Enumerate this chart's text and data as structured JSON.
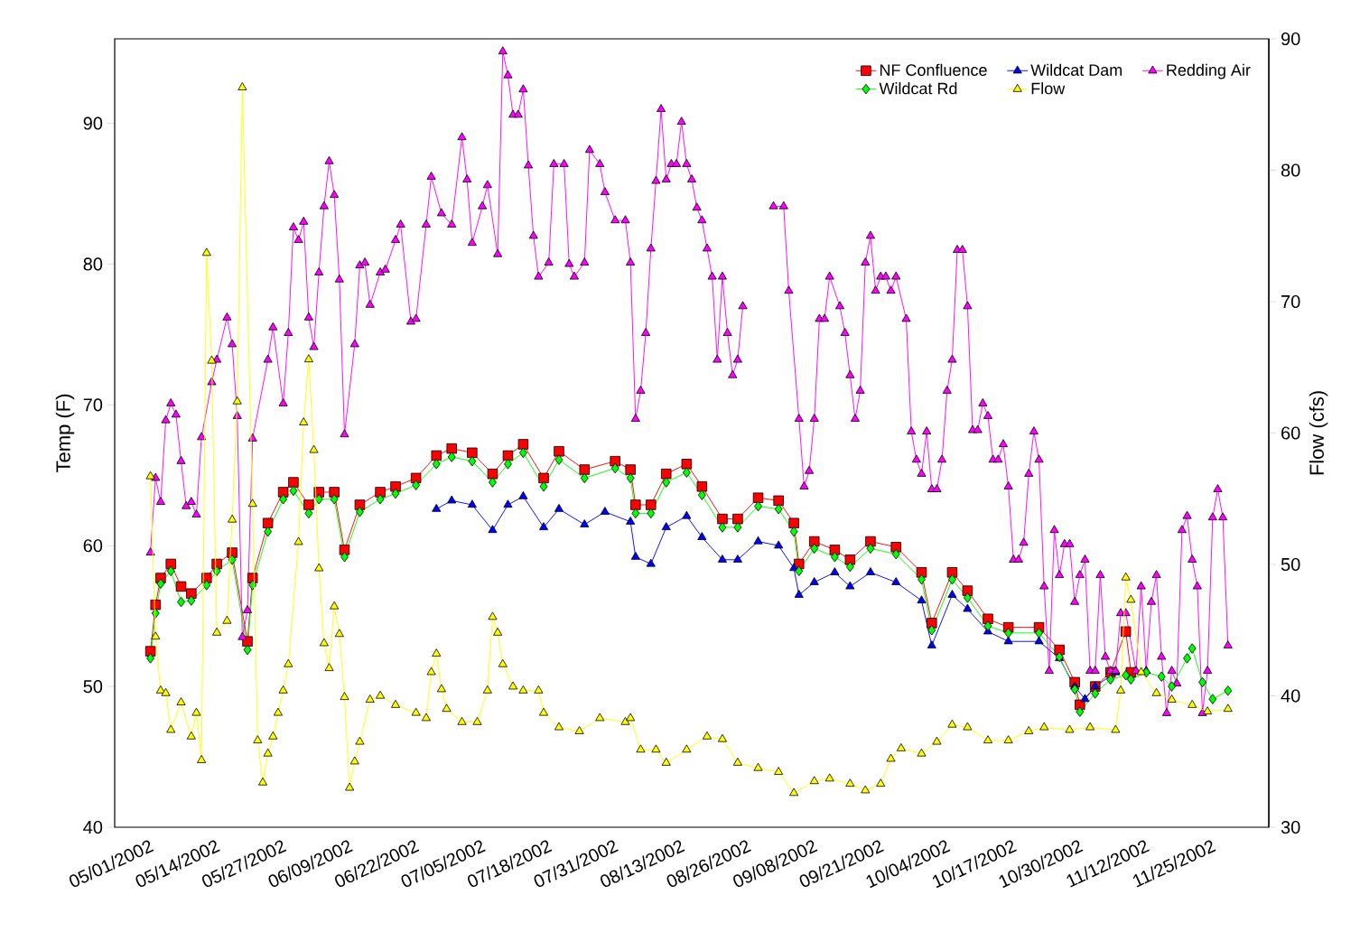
{
  "chart_data": {
    "type": "line",
    "ylabel": "Temp (F)",
    "y2label": "Flow (cfs)",
    "xlim": [
      "2002-04-24",
      "2002-12-06"
    ],
    "ylim": [
      40,
      96
    ],
    "y2lim": [
      30,
      90
    ],
    "yticks": [
      40,
      50,
      60,
      70,
      80,
      90
    ],
    "y2ticks": [
      30,
      40,
      50,
      60,
      70,
      80,
      90
    ],
    "xticks": [
      {
        "value": "2002-05-01",
        "label": "05/01/2002"
      },
      {
        "value": "2002-05-14",
        "label": "05/14/2002"
      },
      {
        "value": "2002-05-27",
        "label": "05/27/2002"
      },
      {
        "value": "2002-06-09",
        "label": "06/09/2002"
      },
      {
        "value": "2002-06-22",
        "label": "06/22/2002"
      },
      {
        "value": "2002-07-05",
        "label": "07/05/2002"
      },
      {
        "value": "2002-07-18",
        "label": "07/18/2002"
      },
      {
        "value": "2002-07-31",
        "label": "07/31/2002"
      },
      {
        "value": "2002-08-13",
        "label": "08/13/2002"
      },
      {
        "value": "2002-08-26",
        "label": "08/26/2002"
      },
      {
        "value": "2002-09-08",
        "label": "09/08/2002"
      },
      {
        "value": "2002-09-21",
        "label": "09/21/2002"
      },
      {
        "value": "2002-10-04",
        "label": "10/04/2002"
      },
      {
        "value": "2002-10-17",
        "label": "10/17/2002"
      },
      {
        "value": "2002-10-30",
        "label": "10/30/2002"
      },
      {
        "value": "2002-11-12",
        "label": "11/12/2002"
      },
      {
        "value": "2002-11-25",
        "label": "11/25/2002"
      }
    ],
    "legend": "top right",
    "series": [
      {
        "name": "NF Confluence",
        "color": "#ff0000",
        "marker": "square",
        "x": [
          "2002-05-01",
          "2002-05-02",
          "2002-05-03",
          "2002-05-05",
          "2002-05-07",
          "2002-05-09",
          "2002-05-12",
          "2002-05-14",
          "2002-05-17",
          "2002-05-20",
          "2002-05-21",
          "2002-05-24",
          "2002-05-27",
          "2002-05-29",
          "2002-06-01",
          "2002-06-03",
          "2002-06-06",
          "2002-06-08",
          "2002-06-11",
          "2002-06-15",
          "2002-06-18",
          "2002-06-22",
          "2002-06-26",
          "2002-06-29",
          "2002-07-03",
          "2002-07-07",
          "2002-07-10",
          "2002-07-13",
          "2002-07-17",
          "2002-07-20",
          "2002-07-25",
          "2002-07-31",
          "2002-08-03",
          "2002-08-04",
          "2002-08-07",
          "2002-08-10",
          "2002-08-14",
          "2002-08-17",
          "2002-08-21",
          "2002-08-24",
          "2002-08-28",
          "2002-09-01",
          "2002-09-04",
          "2002-09-05",
          "2002-09-08",
          "2002-09-12",
          "2002-09-15",
          "2002-09-19",
          "2002-09-24",
          "2002-09-29",
          "2002-10-01",
          "2002-10-05",
          "2002-10-08",
          "2002-10-12",
          "2002-10-16",
          "2002-10-22",
          "2002-10-26",
          "2002-10-29",
          "2002-10-30",
          "2002-11-02",
          "2002-11-05",
          "2002-11-08",
          "2002-11-09"
        ],
        "values": [
          52.5,
          55.8,
          57.7,
          58.7,
          57.1,
          56.6,
          57.7,
          58.7,
          59.5,
          53.2,
          57.7,
          61.6,
          63.8,
          64.5,
          62.9,
          63.8,
          63.8,
          59.7,
          62.9,
          63.8,
          64.2,
          64.8,
          66.4,
          66.9,
          66.6,
          65.1,
          66.4,
          67.2,
          64.8,
          66.7,
          65.4,
          66.0,
          65.4,
          62.9,
          62.9,
          65.1,
          65.8,
          64.2,
          61.9,
          61.9,
          63.4,
          63.2,
          61.6,
          58.7,
          60.3,
          59.7,
          59.0,
          60.3,
          59.9,
          58.1,
          54.5,
          58.1,
          56.8,
          54.8,
          54.2,
          54.2,
          52.6,
          50.3,
          48.7,
          50.0,
          51.0,
          53.9,
          51.0
        ]
      },
      {
        "name": "Wildcat Dam",
        "color": "#0000ff",
        "marker": "triangle",
        "x": [
          "2002-06-26",
          "2002-06-29",
          "2002-07-03",
          "2002-07-07",
          "2002-07-10",
          "2002-07-13",
          "2002-07-17",
          "2002-07-20",
          "2002-07-25",
          "2002-07-29",
          "2002-08-03",
          "2002-08-04",
          "2002-08-07",
          "2002-08-10",
          "2002-08-14",
          "2002-08-17",
          "2002-08-21",
          "2002-08-24",
          "2002-08-28",
          "2002-09-01",
          "2002-09-04",
          "2002-09-05",
          "2002-09-08",
          "2002-09-12",
          "2002-09-15",
          "2002-09-19",
          "2002-09-24",
          "2002-09-29",
          "2002-10-01",
          "2002-10-05",
          "2002-10-08",
          "2002-10-12",
          "2002-10-16",
          "2002-10-22",
          "2002-10-26",
          "2002-10-29",
          "2002-10-31",
          "2002-11-02",
          "2002-11-06"
        ],
        "values": [
          62.6,
          63.2,
          62.9,
          61.1,
          62.9,
          63.5,
          61.3,
          62.6,
          61.5,
          62.4,
          61.7,
          59.2,
          58.7,
          61.3,
          62.1,
          60.6,
          59.0,
          59.0,
          60.3,
          60.0,
          58.4,
          56.5,
          57.4,
          58.1,
          57.1,
          58.1,
          57.4,
          56.1,
          52.9,
          56.5,
          55.5,
          53.9,
          53.2,
          53.2,
          52.0,
          50.0,
          49.1,
          50.0,
          51.0
        ]
      },
      {
        "name": "Redding Air",
        "color": "#ff00ff",
        "marker": "triangle-down",
        "x": [
          "2002-05-01",
          "2002-05-02",
          "2002-05-03",
          "2002-05-04",
          "2002-05-05",
          "2002-05-06",
          "2002-05-07",
          "2002-05-08",
          "2002-05-09",
          "2002-05-10",
          "2002-05-11",
          "2002-05-13",
          "2002-05-14",
          "2002-05-16",
          "2002-05-17",
          "2002-05-18",
          "2002-05-19",
          "2002-05-20",
          "2002-05-21",
          "2002-05-24",
          "2002-05-25",
          "2002-05-27",
          "2002-05-28",
          "2002-05-29",
          "2002-05-30",
          "2002-05-31",
          "2002-06-01",
          "2002-06-02",
          "2002-06-03",
          "2002-06-04",
          "2002-06-05",
          "2002-06-06",
          "2002-06-07",
          "2002-06-08",
          "2002-06-10",
          "2002-06-11",
          "2002-06-12",
          "2002-06-13",
          "2002-06-15",
          "2002-06-16",
          "2002-06-18",
          "2002-06-19",
          "2002-06-21",
          "2002-06-22",
          "2002-06-24",
          "2002-06-25",
          "2002-06-27",
          "2002-06-29",
          "2002-07-01",
          "2002-07-02",
          "2002-07-03",
          "2002-07-05",
          "2002-07-06",
          "2002-07-08",
          "2002-07-09",
          "2002-07-10",
          "2002-07-11",
          "2002-07-12",
          "2002-07-13",
          "2002-07-14",
          "2002-07-15",
          "2002-07-16",
          "2002-07-18",
          "2002-07-19",
          "2002-07-21",
          "2002-07-22",
          "2002-07-23",
          "2002-07-25",
          "2002-07-26",
          "2002-07-28",
          "2002-07-29",
          "2002-07-31",
          "2002-08-02",
          "2002-08-03",
          "2002-08-04",
          "2002-08-05",
          "2002-08-06",
          "2002-08-07",
          "2002-08-08",
          "2002-08-09",
          "2002-08-10",
          "2002-08-11",
          "2002-08-12",
          "2002-08-13",
          "2002-08-14",
          "2002-08-15",
          "2002-08-16",
          "2002-08-17",
          "2002-08-18",
          "2002-08-19",
          "2002-08-20",
          "2002-08-21",
          "2002-08-22",
          "2002-08-23",
          "2002-08-24",
          "2002-08-25",
          "2002-08-28",
          "2002-08-31",
          "2002-09-02",
          "2002-09-03",
          "2002-09-05",
          "2002-09-06",
          "2002-09-07",
          "2002-09-08",
          "2002-09-09",
          "2002-09-10",
          "2002-09-11",
          "2002-09-13",
          "2002-09-14",
          "2002-09-15",
          "2002-09-16",
          "2002-09-17",
          "2002-09-18",
          "2002-09-19",
          "2002-09-20",
          "2002-09-21",
          "2002-09-22",
          "2002-09-23",
          "2002-09-24",
          "2002-09-26",
          "2002-09-27",
          "2002-09-28",
          "2002-09-29",
          "2002-09-30",
          "2002-10-01",
          "2002-10-02",
          "2002-10-03",
          "2002-10-04",
          "2002-10-05",
          "2002-10-06",
          "2002-10-07",
          "2002-10-08",
          "2002-10-09",
          "2002-10-10",
          "2002-10-11",
          "2002-10-12",
          "2002-10-13",
          "2002-10-14",
          "2002-10-15",
          "2002-10-16",
          "2002-10-17",
          "2002-10-18",
          "2002-10-19",
          "2002-10-20",
          "2002-10-21",
          "2002-10-22",
          "2002-10-23",
          "2002-10-24",
          "2002-10-25",
          "2002-10-26",
          "2002-10-27",
          "2002-10-28",
          "2002-10-29",
          "2002-10-30",
          "2002-10-31",
          "2002-11-01",
          "2002-11-02",
          "2002-11-03",
          "2002-11-04",
          "2002-11-05",
          "2002-11-06",
          "2002-11-07",
          "2002-11-08",
          "2002-11-10",
          "2002-11-11",
          "2002-11-12",
          "2002-11-13",
          "2002-11-14",
          "2002-11-15",
          "2002-11-16",
          "2002-11-17",
          "2002-11-18",
          "2002-11-19",
          "2002-11-20",
          "2002-11-21",
          "2002-11-22",
          "2002-11-23",
          "2002-11-24",
          "2002-11-25",
          "2002-11-26",
          "2002-11-27",
          "2002-11-28"
        ],
        "values": [
          59.5,
          64.8,
          63.1,
          68.9,
          70.1,
          69.3,
          66.0,
          62.8,
          63.1,
          62.2,
          67.7,
          71.6,
          73.2,
          76.2,
          74.3,
          69.2,
          53.5,
          55.4,
          67.6,
          73.2,
          75.5,
          70.1,
          75.1,
          82.6,
          81.7,
          83.0,
          76.2,
          74.1,
          79.4,
          84.1,
          87.3,
          84.9,
          78.9,
          67.9,
          74.3,
          79.9,
          80.1,
          77.1,
          79.4,
          79.6,
          81.7,
          82.8,
          75.9,
          76.1,
          82.8,
          86.2,
          83.6,
          82.8,
          89.0,
          86.0,
          81.5,
          84.1,
          85.6,
          80.7,
          95.1,
          93.4,
          90.6,
          90.6,
          92.4,
          87.0,
          82.0,
          79.1,
          80.1,
          87.1,
          87.1,
          80.0,
          79.1,
          80.1,
          88.1,
          87.1,
          85.1,
          83.1,
          83.1,
          80.1,
          69.0,
          71.0,
          75.1,
          81.1,
          85.9,
          91.0,
          86.0,
          87.1,
          87.1,
          90.1,
          87.1,
          86.0,
          84.0,
          83.1,
          81.1,
          79.1,
          73.2,
          79.1,
          75.1,
          72.1,
          73.2,
          77.0,
          null,
          84.1,
          84.1,
          78.1,
          69.0,
          64.2,
          65.3,
          69.0,
          76.1,
          76.1,
          79.1,
          77.0,
          75.1,
          72.1,
          69.0,
          71.0,
          80.1,
          82.0,
          78.1,
          79.1,
          79.1,
          78.1,
          79.1,
          76.1,
          68.1,
          66.1,
          65.1,
          68.1,
          64.0,
          64.0,
          66.1,
          71.0,
          73.2,
          81.0,
          81.0,
          77.0,
          68.2,
          68.2,
          70.1,
          69.2,
          66.1,
          66.1,
          67.2,
          64.2,
          59.0,
          59.0,
          60.2,
          65.1,
          68.1,
          66.1,
          57.1,
          51.1,
          61.1,
          57.9,
          60.1,
          60.1,
          56.0,
          57.9,
          59.0,
          51.1,
          51.1,
          57.9,
          52.1,
          51.1,
          51.1,
          55.2,
          55.2,
          51.1,
          57.1,
          51.1,
          56.0,
          57.9,
          52.1,
          48.1,
          51.1,
          50.2,
          61.1,
          62.1,
          59.0,
          57.1,
          48.1,
          51.1,
          62.0,
          64.0,
          62.0,
          52.9
        ]
      },
      {
        "name": "Wildcat Rd",
        "color": "#00ff00",
        "marker": "diamond",
        "x": [
          "2002-05-01",
          "2002-05-02",
          "2002-05-03",
          "2002-05-05",
          "2002-05-07",
          "2002-05-09",
          "2002-05-12",
          "2002-05-14",
          "2002-05-17",
          "2002-05-20",
          "2002-05-21",
          "2002-05-24",
          "2002-05-27",
          "2002-05-29",
          "2002-06-01",
          "2002-06-03",
          "2002-06-06",
          "2002-06-08",
          "2002-06-11",
          "2002-06-15",
          "2002-06-18",
          "2002-06-22",
          "2002-06-26",
          "2002-06-29",
          "2002-07-03",
          "2002-07-07",
          "2002-07-10",
          "2002-07-13",
          "2002-07-17",
          "2002-07-20",
          "2002-07-25",
          "2002-07-31",
          "2002-08-03",
          "2002-08-04",
          "2002-08-07",
          "2002-08-10",
          "2002-08-14",
          "2002-08-17",
          "2002-08-21",
          "2002-08-24",
          "2002-08-28",
          "2002-09-01",
          "2002-09-04",
          "2002-09-05",
          "2002-09-08",
          "2002-09-12",
          "2002-09-15",
          "2002-09-19",
          "2002-09-24",
          "2002-09-29",
          "2002-10-01",
          "2002-10-05",
          "2002-10-08",
          "2002-10-12",
          "2002-10-16",
          "2002-10-22",
          "2002-10-26",
          "2002-10-29",
          "2002-10-30",
          "2002-11-02",
          "2002-11-05",
          "2002-11-08",
          "2002-11-09",
          "2002-11-12",
          "2002-11-15",
          "2002-11-17",
          "2002-11-20",
          "2002-11-21",
          "2002-11-23",
          "2002-11-25",
          "2002-11-28"
        ],
        "values": [
          52.0,
          55.2,
          57.3,
          58.2,
          56.0,
          56.1,
          57.2,
          58.2,
          59.0,
          52.6,
          57.2,
          61.0,
          63.3,
          63.9,
          62.3,
          63.3,
          63.3,
          59.2,
          62.4,
          63.3,
          63.7,
          64.3,
          65.8,
          66.3,
          66.0,
          64.5,
          65.8,
          66.6,
          64.2,
          66.1,
          64.8,
          65.5,
          64.8,
          62.3,
          62.3,
          64.5,
          65.2,
          63.6,
          61.3,
          61.3,
          62.8,
          62.6,
          61.0,
          58.2,
          59.8,
          59.2,
          58.5,
          59.8,
          59.4,
          57.6,
          54.0,
          57.6,
          56.3,
          54.3,
          53.8,
          53.8,
          52.1,
          49.8,
          48.2,
          49.5,
          50.5,
          50.8,
          50.5,
          51.0,
          50.7,
          50.0,
          52.0,
          52.7,
          50.3,
          49.1,
          49.7
        ]
      },
      {
        "name": "Flow",
        "color": "#ffff00",
        "marker": "triangle",
        "axis": "y2",
        "x": [
          "2002-05-01",
          "2002-05-02",
          "2002-05-03",
          "2002-05-04",
          "2002-05-05",
          "2002-05-07",
          "2002-05-09",
          "2002-05-10",
          "2002-05-11",
          "2002-05-12",
          "2002-05-13",
          "2002-05-14",
          "2002-05-16",
          "2002-05-17",
          "2002-05-18",
          "2002-05-19",
          "2002-05-21",
          "2002-05-22",
          "2002-05-23",
          "2002-05-24",
          "2002-05-25",
          "2002-05-26",
          "2002-05-27",
          "2002-05-28",
          "2002-05-30",
          "2002-05-31",
          "2002-06-01",
          "2002-06-02",
          "2002-06-03",
          "2002-06-04",
          "2002-06-05",
          "2002-06-06",
          "2002-06-07",
          "2002-06-08",
          "2002-06-09",
          "2002-06-10",
          "2002-06-11",
          "2002-06-13",
          "2002-06-15",
          "2002-06-18",
          "2002-06-22",
          "2002-06-24",
          "2002-06-25",
          "2002-06-26",
          "2002-06-27",
          "2002-06-28",
          "2002-07-01",
          "2002-07-04",
          "2002-07-06",
          "2002-07-07",
          "2002-07-08",
          "2002-07-09",
          "2002-07-11",
          "2002-07-13",
          "2002-07-16",
          "2002-07-17",
          "2002-07-20",
          "2002-07-24",
          "2002-07-28",
          "2002-08-02",
          "2002-08-03",
          "2002-08-05",
          "2002-08-08",
          "2002-08-10",
          "2002-08-14",
          "2002-08-18",
          "2002-08-21",
          "2002-08-24",
          "2002-08-28",
          "2002-09-01",
          "2002-09-04",
          "2002-09-08",
          "2002-09-11",
          "2002-09-15",
          "2002-09-18",
          "2002-09-21",
          "2002-09-23",
          "2002-09-25",
          "2002-09-29",
          "2002-10-02",
          "2002-10-05",
          "2002-10-08",
          "2002-10-12",
          "2002-10-16",
          "2002-10-20",
          "2002-10-23",
          "2002-10-28",
          "2002-11-01",
          "2002-11-06",
          "2002-11-07",
          "2002-11-08",
          "2002-11-09",
          "2002-11-11",
          "2002-11-14",
          "2002-11-17",
          "2002-11-21",
          "2002-11-24",
          "2002-11-28"
        ],
        "values": [
          56.7,
          44.5,
          40.4,
          40.2,
          37.4,
          39.5,
          36.9,
          38.7,
          35.1,
          73.7,
          65.5,
          44.8,
          45.7,
          53.4,
          62.4,
          86.3,
          54.6,
          36.6,
          33.4,
          35.6,
          36.9,
          38.7,
          40.4,
          42.4,
          51.7,
          60.8,
          65.6,
          58.7,
          49.7,
          44.0,
          42.1,
          46.8,
          44.7,
          39.9,
          33.0,
          35.0,
          36.5,
          39.7,
          40.0,
          39.3,
          38.7,
          38.3,
          41.8,
          43.2,
          40.5,
          39.0,
          38.0,
          38.0,
          40.4,
          46.0,
          44.8,
          42.4,
          40.7,
          40.4,
          40.4,
          38.7,
          37.6,
          37.3,
          38.3,
          38.0,
          38.3,
          35.9,
          35.9,
          34.9,
          35.9,
          36.9,
          36.7,
          34.9,
          34.5,
          34.2,
          32.6,
          33.5,
          33.7,
          33.3,
          32.8,
          33.3,
          35.2,
          36.0,
          35.6,
          36.5,
          37.8,
          37.6,
          36.6,
          36.6,
          37.3,
          37.6,
          37.4,
          37.6,
          37.4,
          40.4,
          49.0,
          47.3,
          41.8,
          40.2,
          39.7,
          39.3,
          38.8,
          39.0
        ]
      }
    ]
  }
}
